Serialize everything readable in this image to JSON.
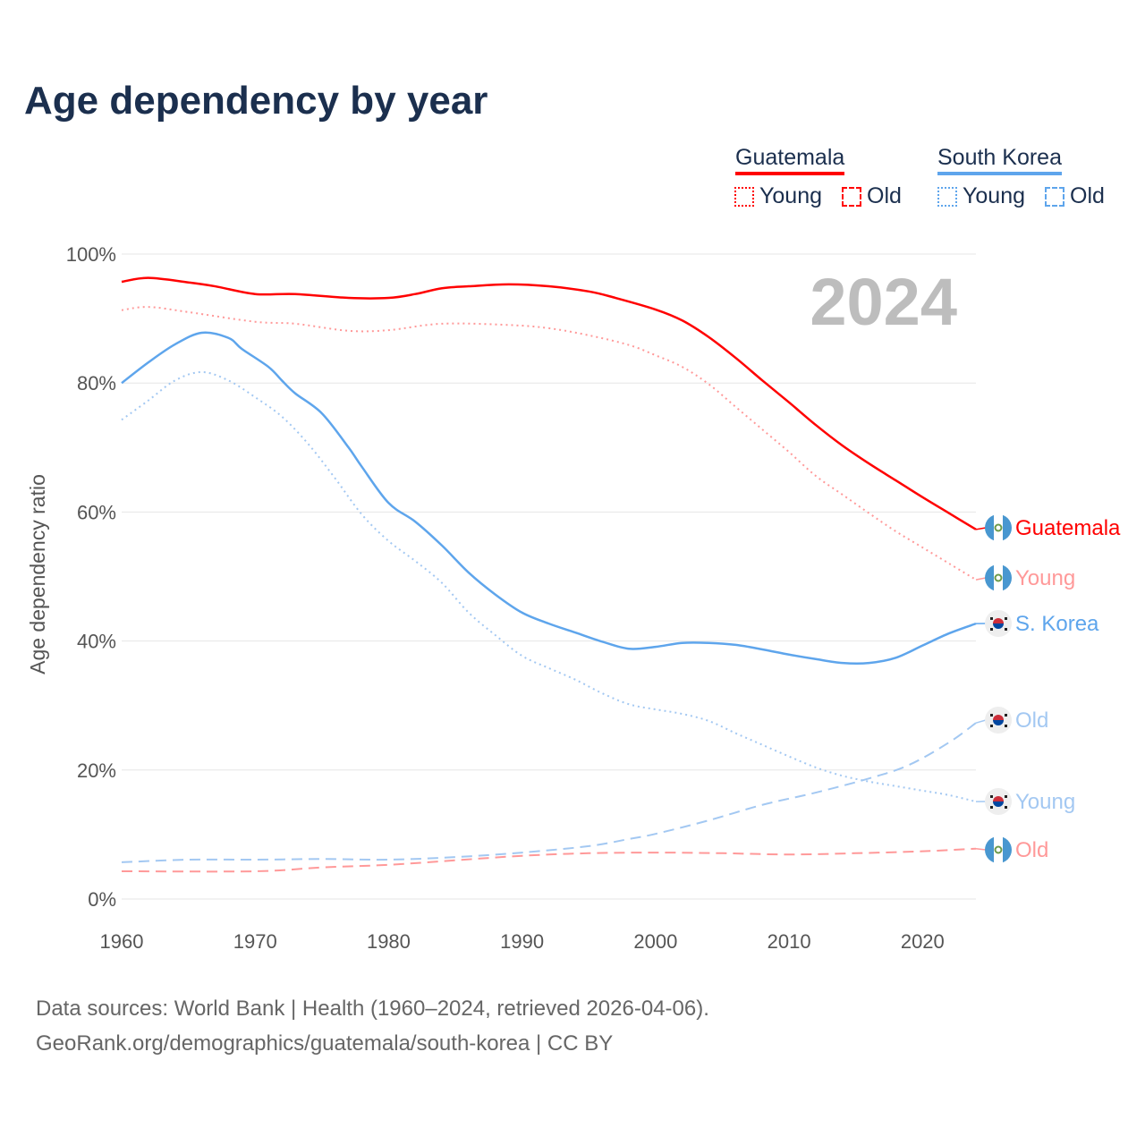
{
  "title": "Age dependency by year",
  "legend": {
    "countries": [
      {
        "name": "Guatemala",
        "color": "#ff0000",
        "young": "Young",
        "old": "Old"
      },
      {
        "name": "South Korea",
        "color": "#5ea5ec",
        "young": "Young",
        "old": "Old"
      }
    ]
  },
  "year_badge": "2024",
  "footer": {
    "line1": "Data sources: World Bank | Health (1960–2024, retrieved 2026-04-06).",
    "line2": "GeoRank.org/demographics/guatemala/south-korea | CC BY"
  },
  "chart_data": {
    "type": "line",
    "title": "Age dependency by year",
    "xlabel": "",
    "ylabel": "Age dependency ratio",
    "xlim": [
      1960,
      2024
    ],
    "ylim": [
      0,
      100
    ],
    "xticks": [
      "1960",
      "1970",
      "1980",
      "1990",
      "2000",
      "2010",
      "2020"
    ],
    "yticks": [
      "0%",
      "20%",
      "40%",
      "60%",
      "80%",
      "100%"
    ],
    "grid": true,
    "series": [
      {
        "name": "Guatemala",
        "label": "Guatemala",
        "color": "#ff0000",
        "style": "solid",
        "flag": "guatemala",
        "points": [
          [
            1960,
            95.7
          ],
          [
            1962,
            96.3
          ],
          [
            1965,
            95.6
          ],
          [
            1967,
            95.0
          ],
          [
            1970,
            93.8
          ],
          [
            1973,
            93.8
          ],
          [
            1977,
            93.2
          ],
          [
            1980,
            93.2
          ],
          [
            1982,
            93.8
          ],
          [
            1984,
            94.7
          ],
          [
            1986,
            95.0
          ],
          [
            1989,
            95.3
          ],
          [
            1992,
            95.0
          ],
          [
            1995,
            94.2
          ],
          [
            1997,
            93.2
          ],
          [
            2000,
            91.4
          ],
          [
            2002,
            89.7
          ],
          [
            2004,
            87.1
          ],
          [
            2006,
            83.9
          ],
          [
            2008,
            80.4
          ],
          [
            2010,
            77.0
          ],
          [
            2012,
            73.5
          ],
          [
            2014,
            70.3
          ],
          [
            2016,
            67.5
          ],
          [
            2018,
            64.9
          ],
          [
            2020,
            62.3
          ],
          [
            2022,
            59.8
          ],
          [
            2024,
            57.3
          ]
        ]
      },
      {
        "name": "Guatemala Young",
        "label": "Young",
        "color": "#ff9999",
        "style": "dotted",
        "flag": "guatemala",
        "points": [
          [
            1960,
            91.3
          ],
          [
            1962,
            91.8
          ],
          [
            1965,
            91.0
          ],
          [
            1970,
            89.5
          ],
          [
            1973,
            89.2
          ],
          [
            1977,
            88.1
          ],
          [
            1980,
            88.2
          ],
          [
            1984,
            89.2
          ],
          [
            1989,
            89.0
          ],
          [
            1992,
            88.5
          ],
          [
            1995,
            87.4
          ],
          [
            1998,
            85.9
          ],
          [
            2000,
            84.3
          ],
          [
            2002,
            82.5
          ],
          [
            2004,
            79.8
          ],
          [
            2006,
            76.3
          ],
          [
            2008,
            72.8
          ],
          [
            2010,
            69.3
          ],
          [
            2012,
            65.6
          ],
          [
            2014,
            62.7
          ],
          [
            2016,
            59.8
          ],
          [
            2018,
            57.0
          ],
          [
            2020,
            54.5
          ],
          [
            2022,
            52.0
          ],
          [
            2024,
            49.5
          ]
        ]
      },
      {
        "name": "Guatemala Old",
        "label": "Old",
        "color": "#ff9999",
        "style": "dashed",
        "flag": "guatemala",
        "points": [
          [
            1960,
            4.3
          ],
          [
            1970,
            4.3
          ],
          [
            1975,
            4.9
          ],
          [
            1980,
            5.3
          ],
          [
            1985,
            6.0
          ],
          [
            1990,
            6.7
          ],
          [
            1995,
            7.1
          ],
          [
            2000,
            7.2
          ],
          [
            2005,
            7.1
          ],
          [
            2010,
            6.9
          ],
          [
            2015,
            7.1
          ],
          [
            2020,
            7.4
          ],
          [
            2024,
            7.8
          ]
        ]
      },
      {
        "name": "South Korea",
        "label": "S. Korea",
        "color": "#5ea5ec",
        "style": "solid",
        "flag": "korea",
        "points": [
          [
            1960,
            80.0
          ],
          [
            1962,
            83.2
          ],
          [
            1964,
            86.0
          ],
          [
            1966,
            87.8
          ],
          [
            1968,
            87.0
          ],
          [
            1969,
            85.3
          ],
          [
            1971,
            82.5
          ],
          [
            1972,
            80.4
          ],
          [
            1973,
            78.4
          ],
          [
            1975,
            75.3
          ],
          [
            1977,
            70.0
          ],
          [
            1978,
            67.0
          ],
          [
            1980,
            61.4
          ],
          [
            1982,
            58.5
          ],
          [
            1984,
            54.8
          ],
          [
            1986,
            50.6
          ],
          [
            1988,
            47.2
          ],
          [
            1990,
            44.4
          ],
          [
            1992,
            42.7
          ],
          [
            1994,
            41.3
          ],
          [
            1996,
            39.9
          ],
          [
            1998,
            38.8
          ],
          [
            2000,
            39.1
          ],
          [
            2002,
            39.7
          ],
          [
            2004,
            39.7
          ],
          [
            2006,
            39.4
          ],
          [
            2008,
            38.7
          ],
          [
            2010,
            37.9
          ],
          [
            2012,
            37.2
          ],
          [
            2014,
            36.6
          ],
          [
            2016,
            36.6
          ],
          [
            2018,
            37.4
          ],
          [
            2020,
            39.3
          ],
          [
            2022,
            41.2
          ],
          [
            2024,
            42.7
          ]
        ]
      },
      {
        "name": "South Korea Old",
        "label": "Old",
        "color": "#a3c8f2",
        "style": "dashed",
        "flag": "korea",
        "points": [
          [
            1960,
            5.7
          ],
          [
            1965,
            6.1
          ],
          [
            1970,
            6.1
          ],
          [
            1975,
            6.2
          ],
          [
            1980,
            6.1
          ],
          [
            1985,
            6.5
          ],
          [
            1990,
            7.2
          ],
          [
            1995,
            8.2
          ],
          [
            1998,
            9.3
          ],
          [
            2000,
            10.1
          ],
          [
            2004,
            12.2
          ],
          [
            2008,
            14.6
          ],
          [
            2012,
            16.5
          ],
          [
            2016,
            18.7
          ],
          [
            2019,
            20.8
          ],
          [
            2022,
            24.3
          ],
          [
            2024,
            27.3
          ]
        ]
      },
      {
        "name": "South Korea Young",
        "label": "Young",
        "color": "#a3c8f2",
        "style": "dotted",
        "flag": "korea",
        "points": [
          [
            1960,
            74.3
          ],
          [
            1962,
            77.3
          ],
          [
            1964,
            80.4
          ],
          [
            1966,
            81.7
          ],
          [
            1968,
            80.4
          ],
          [
            1970,
            77.8
          ],
          [
            1972,
            74.8
          ],
          [
            1974,
            70.5
          ],
          [
            1976,
            65.2
          ],
          [
            1978,
            59.6
          ],
          [
            1980,
            55.5
          ],
          [
            1982,
            52.4
          ],
          [
            1984,
            49.0
          ],
          [
            1986,
            44.4
          ],
          [
            1988,
            40.9
          ],
          [
            1990,
            37.7
          ],
          [
            1992,
            35.8
          ],
          [
            1994,
            34.0
          ],
          [
            1996,
            31.9
          ],
          [
            1998,
            30.2
          ],
          [
            2000,
            29.4
          ],
          [
            2002,
            28.7
          ],
          [
            2004,
            27.6
          ],
          [
            2006,
            25.7
          ],
          [
            2008,
            23.9
          ],
          [
            2010,
            22.1
          ],
          [
            2012,
            20.4
          ],
          [
            2014,
            19.1
          ],
          [
            2016,
            18.2
          ],
          [
            2018,
            17.5
          ],
          [
            2020,
            16.8
          ],
          [
            2022,
            16.1
          ],
          [
            2024,
            15.1
          ]
        ]
      }
    ]
  }
}
